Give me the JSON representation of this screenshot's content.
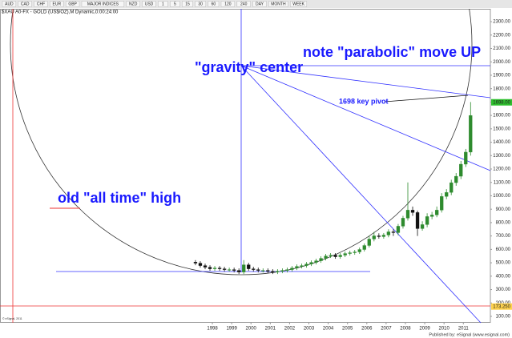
{
  "toolbar": [
    "AUD",
    "CAD",
    "CHF",
    "EUR",
    "GBP",
    "MAJOR INDICES",
    "NZD",
    "USD",
    "1",
    "5",
    "15",
    "30",
    "60",
    "120",
    "240",
    "DAY",
    "MONTH",
    "WEEK"
  ],
  "footer": "Published by: eSignal (www.esignal.com)",
  "copyright": "© eSignal, 2011",
  "chart_data": {
    "type": "candlestick",
    "title": "$XAU A0-FX - GOLD (US$/OZ),M Dynamic,0:00:24:00",
    "annotations": [
      "\"gravity\" center",
      "note \"parabolic\" move UP",
      "old \"all time\" high",
      "1698 key pivot"
    ],
    "level_labels": [
      {
        "value": 1698,
        "label": "1698.00",
        "color": "#2fbf2f"
      },
      {
        "value": 173.25,
        "label": "173.250",
        "color": "#ffd24d"
      }
    ],
    "up_color": "#2e8b2e",
    "down_color": "#111111",
    "x": [
      1997.125,
      1997.375,
      1997.625,
      1997.875,
      1998.125,
      1998.375,
      1998.625,
      1998.875,
      1999.125,
      1999.375,
      1999.625,
      1999.875,
      2000.125,
      2000.375,
      2000.625,
      2000.875,
      2001.125,
      2001.375,
      2001.625,
      2001.875,
      2002.125,
      2002.375,
      2002.625,
      2002.875,
      2003.125,
      2003.375,
      2003.625,
      2003.875,
      2004.125,
      2004.375,
      2004.625,
      2004.875,
      2005.125,
      2005.375,
      2005.625,
      2005.875,
      2006.125,
      2006.375,
      2006.625,
      2006.875,
      2007.125,
      2007.375,
      2007.625,
      2007.875,
      2008.125,
      2008.375,
      2008.625,
      2008.875,
      2009.125,
      2009.375,
      2009.625,
      2009.875,
      2010.125,
      2010.375,
      2010.625,
      2010.875,
      2011.125,
      2011.375
    ],
    "open": [
      505,
      497,
      479,
      467,
      455,
      461,
      455,
      449,
      449,
      443,
      431,
      485,
      455,
      449,
      443,
      443,
      437,
      431,
      437,
      443,
      449,
      461,
      473,
      479,
      491,
      503,
      515,
      533,
      551,
      557,
      545,
      557,
      569,
      575,
      581,
      599,
      629,
      677,
      701,
      695,
      707,
      731,
      725,
      773,
      833,
      893,
      875,
      755,
      785,
      845,
      857,
      893,
      995,
      1025,
      1098,
      1146,
      1236,
      1326
    ],
    "high": [
      520,
      512,
      494,
      482,
      476,
      476,
      470,
      464,
      464,
      458,
      520,
      500,
      470,
      464,
      458,
      458,
      452,
      452,
      458,
      464,
      476,
      488,
      494,
      506,
      518,
      530,
      548,
      566,
      572,
      572,
      572,
      584,
      590,
      596,
      614,
      644,
      700,
      730,
      720,
      722,
      750,
      750,
      790,
      850,
      1100,
      920,
      890,
      810,
      870,
      880,
      920,
      1020,
      1050,
      1120,
      1170,
      1260,
      1350,
      1700
    ],
    "low": [
      482,
      464,
      452,
      440,
      440,
      440,
      434,
      434,
      428,
      416,
      416,
      440,
      434,
      428,
      428,
      422,
      416,
      416,
      422,
      428,
      434,
      446,
      458,
      464,
      476,
      488,
      500,
      518,
      536,
      530,
      530,
      542,
      554,
      560,
      566,
      584,
      614,
      660,
      680,
      680,
      690,
      700,
      705,
      755,
      815,
      850,
      700,
      740,
      765,
      825,
      840,
      875,
      975,
      1005,
      1075,
      1125,
      1215,
      1300
    ],
    "close": [
      497,
      479,
      467,
      455,
      461,
      455,
      449,
      449,
      443,
      431,
      485,
      455,
      449,
      443,
      443,
      437,
      431,
      437,
      443,
      449,
      461,
      473,
      479,
      491,
      503,
      515,
      533,
      551,
      557,
      545,
      557,
      569,
      575,
      581,
      599,
      629,
      677,
      701,
      695,
      707,
      731,
      725,
      773,
      833,
      893,
      875,
      755,
      785,
      845,
      857,
      893,
      995,
      1025,
      1098,
      1146,
      1236,
      1326,
      1600
    ],
    "xlim": [
      1987,
      2012.4
    ],
    "xticks": [
      1998,
      1999,
      2000,
      2001,
      2002,
      2003,
      2004,
      2005,
      2006,
      2007,
      2008,
      2009,
      2010,
      2011
    ],
    "ylim": [
      52,
      2396
    ],
    "yticks": [
      {
        "value": 100,
        "label": "100.00"
      },
      {
        "value": 200,
        "label": "200.00"
      },
      {
        "value": 300,
        "label": "300.00"
      },
      {
        "value": 400,
        "label": "400.00"
      },
      {
        "value": 500,
        "label": "500.00"
      },
      {
        "value": 600,
        "label": "600.00"
      },
      {
        "value": 700,
        "label": "700.00"
      },
      {
        "value": 800,
        "label": "800.00"
      },
      {
        "value": 900,
        "label": "900.00"
      },
      {
        "value": 1000,
        "label": "1000.00"
      },
      {
        "value": 1100,
        "label": "1100.00"
      },
      {
        "value": 1200,
        "label": "1200.00"
      },
      {
        "value": 1300,
        "label": "1300.00"
      },
      {
        "value": 1400,
        "label": "1400.00"
      },
      {
        "value": 1500,
        "label": "1500.00"
      },
      {
        "value": 1600,
        "label": "1600.00"
      },
      {
        "value": 1700,
        "label": "1700.00"
      },
      {
        "value": 1800,
        "label": "1800.00"
      },
      {
        "value": 1900,
        "label": "1900.00"
      },
      {
        "value": 2000,
        "label": "2000.00"
      },
      {
        "value": 2100,
        "label": "2100.00"
      },
      {
        "value": 2200,
        "label": "2200.00"
      },
      {
        "value": 2300,
        "label": "2300.00"
      }
    ],
    "grid": false
  }
}
